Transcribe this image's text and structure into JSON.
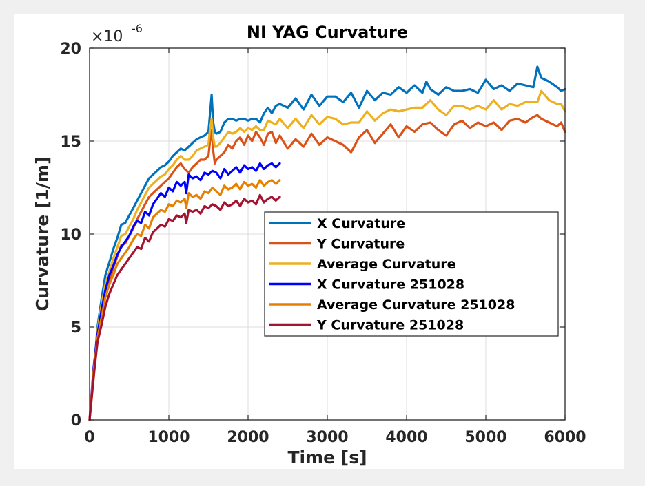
{
  "chart_data": {
    "type": "line",
    "title": "NI YAG Curvature",
    "xlabel": "Time [s]",
    "ylabel": "Curvature [1/m]",
    "y_exponent_base": "×10",
    "y_exponent_power": "-6",
    "xlim": [
      0,
      6000
    ],
    "ylim": [
      0,
      20
    ],
    "xticks": [
      0,
      1000,
      2000,
      3000,
      4000,
      5000,
      6000
    ],
    "yticks": [
      0,
      5,
      10,
      15,
      20
    ],
    "xtick_labels": [
      "0",
      "1000",
      "2000",
      "3000",
      "4000",
      "5000",
      "6000"
    ],
    "ytick_labels": [
      "0",
      "5",
      "10",
      "15",
      "20"
    ],
    "grid": true,
    "legend_position": "center-right",
    "series": [
      {
        "name": "X Curvature",
        "color": "#0072bd",
        "x": [
          0,
          50,
          100,
          150,
          200,
          250,
          300,
          350,
          400,
          450,
          500,
          550,
          600,
          650,
          700,
          750,
          800,
          850,
          900,
          950,
          1000,
          1050,
          1100,
          1150,
          1200,
          1250,
          1300,
          1350,
          1400,
          1450,
          1500,
          1520,
          1540,
          1560,
          1580,
          1600,
          1650,
          1700,
          1750,
          1800,
          1850,
          1900,
          1950,
          2000,
          2050,
          2100,
          2150,
          2200,
          2250,
          2300,
          2350,
          2400,
          2500,
          2600,
          2700,
          2800,
          2900,
          3000,
          3100,
          3200,
          3300,
          3400,
          3500,
          3600,
          3700,
          3800,
          3900,
          4000,
          4100,
          4200,
          4250,
          4300,
          4400,
          4500,
          4600,
          4700,
          4800,
          4900,
          5000,
          5100,
          5200,
          5300,
          5400,
          5500,
          5600,
          5650,
          5700,
          5800,
          5900,
          5950,
          6000
        ],
        "y": [
          0,
          2.5,
          5.0,
          6.5,
          7.8,
          8.5,
          9.2,
          9.8,
          10.5,
          10.6,
          11.0,
          11.4,
          11.8,
          12.2,
          12.6,
          13.0,
          13.2,
          13.4,
          13.6,
          13.7,
          13.9,
          14.2,
          14.4,
          14.6,
          14.5,
          14.7,
          14.9,
          15.1,
          15.2,
          15.3,
          15.5,
          16.5,
          17.5,
          16.0,
          15.5,
          15.4,
          15.5,
          16.0,
          16.2,
          16.2,
          16.1,
          16.2,
          16.2,
          16.1,
          16.2,
          16.2,
          16.0,
          16.5,
          16.8,
          16.5,
          16.9,
          17.0,
          16.8,
          17.3,
          16.7,
          17.5,
          16.9,
          17.4,
          17.4,
          17.1,
          17.6,
          16.8,
          17.7,
          17.2,
          17.6,
          17.5,
          17.9,
          17.6,
          18.0,
          17.6,
          18.2,
          17.8,
          17.5,
          17.9,
          17.7,
          17.7,
          17.8,
          17.6,
          18.3,
          17.8,
          18.0,
          17.7,
          18.1,
          18.0,
          17.9,
          19.0,
          18.4,
          18.2,
          17.9,
          17.7,
          17.8
        ]
      },
      {
        "name": "Y Curvature",
        "color": "#d95319",
        "x": [
          0,
          50,
          100,
          150,
          200,
          250,
          300,
          350,
          400,
          450,
          500,
          550,
          600,
          650,
          700,
          750,
          800,
          850,
          900,
          950,
          1000,
          1050,
          1100,
          1150,
          1200,
          1250,
          1300,
          1350,
          1400,
          1450,
          1500,
          1520,
          1540,
          1560,
          1580,
          1600,
          1650,
          1700,
          1750,
          1800,
          1850,
          1900,
          1950,
          2000,
          2050,
          2100,
          2150,
          2200,
          2250,
          2300,
          2350,
          2400,
          2500,
          2600,
          2700,
          2800,
          2900,
          3000,
          3100,
          3200,
          3300,
          3400,
          3500,
          3600,
          3700,
          3800,
          3900,
          4000,
          4100,
          4200,
          4300,
          4400,
          4500,
          4600,
          4700,
          4800,
          4900,
          5000,
          5100,
          5200,
          5300,
          5400,
          5500,
          5600,
          5650,
          5700,
          5800,
          5900,
          5950,
          6000
        ],
        "y": [
          0,
          2.2,
          4.5,
          5.8,
          6.8,
          7.5,
          8.2,
          8.8,
          9.4,
          9.5,
          9.9,
          10.3,
          10.8,
          11.2,
          11.6,
          12.0,
          12.2,
          12.4,
          12.6,
          12.8,
          13.0,
          13.3,
          13.6,
          13.8,
          13.5,
          13.3,
          13.6,
          13.8,
          14.0,
          14.0,
          14.2,
          15.0,
          15.6,
          14.5,
          13.8,
          14.0,
          14.2,
          14.4,
          14.8,
          14.6,
          15.0,
          15.2,
          14.8,
          15.3,
          15.0,
          15.5,
          15.2,
          14.8,
          15.4,
          15.5,
          14.9,
          15.3,
          14.6,
          15.1,
          14.7,
          15.4,
          14.8,
          15.2,
          15.0,
          14.8,
          14.4,
          15.2,
          15.6,
          14.9,
          15.4,
          15.9,
          15.2,
          15.8,
          15.5,
          15.9,
          16.0,
          15.6,
          15.3,
          15.9,
          16.1,
          15.7,
          16.0,
          15.8,
          16.0,
          15.6,
          16.1,
          16.2,
          16.0,
          16.3,
          16.4,
          16.2,
          16.0,
          15.8,
          16.0,
          15.5
        ]
      },
      {
        "name": "Average Curvature",
        "color": "#edb120",
        "x": [
          0,
          50,
          100,
          150,
          200,
          250,
          300,
          350,
          400,
          450,
          500,
          550,
          600,
          650,
          700,
          750,
          800,
          850,
          900,
          950,
          1000,
          1050,
          1100,
          1150,
          1200,
          1250,
          1300,
          1350,
          1400,
          1450,
          1500,
          1520,
          1540,
          1560,
          1580,
          1600,
          1650,
          1700,
          1750,
          1800,
          1850,
          1900,
          1950,
          2000,
          2050,
          2100,
          2150,
          2200,
          2250,
          2300,
          2350,
          2400,
          2500,
          2600,
          2700,
          2800,
          2900,
          3000,
          3100,
          3200,
          3300,
          3400,
          3500,
          3600,
          3700,
          3800,
          3900,
          4000,
          4100,
          4200,
          4300,
          4400,
          4500,
          4600,
          4700,
          4800,
          4900,
          5000,
          5100,
          5200,
          5300,
          5400,
          5500,
          5600,
          5650,
          5700,
          5800,
          5900,
          5950,
          6000
        ],
        "y": [
          0,
          2.4,
          4.8,
          6.2,
          7.3,
          8.0,
          8.7,
          9.3,
          9.9,
          10.0,
          10.4,
          10.8,
          11.3,
          11.7,
          12.1,
          12.5,
          12.7,
          12.9,
          13.1,
          13.2,
          13.5,
          13.7,
          14.0,
          14.2,
          14.0,
          14.0,
          14.2,
          14.5,
          14.6,
          14.7,
          14.8,
          15.7,
          16.2,
          15.2,
          14.7,
          14.7,
          14.9,
          15.2,
          15.5,
          15.4,
          15.5,
          15.7,
          15.5,
          15.7,
          15.6,
          15.8,
          15.6,
          15.6,
          16.1,
          16.0,
          15.9,
          16.2,
          15.7,
          16.2,
          15.7,
          16.4,
          15.9,
          16.3,
          16.2,
          15.9,
          16.0,
          16.0,
          16.6,
          16.1,
          16.5,
          16.7,
          16.6,
          16.7,
          16.8,
          16.8,
          17.2,
          16.7,
          16.4,
          16.9,
          16.9,
          16.7,
          16.9,
          16.7,
          17.2,
          16.7,
          17.0,
          16.9,
          17.1,
          17.1,
          17.1,
          17.7,
          17.2,
          17.0,
          17.0,
          16.6
        ]
      },
      {
        "name": "X Curvature 251028",
        "color": "#0000ff",
        "x": [
          0,
          50,
          100,
          150,
          200,
          250,
          300,
          350,
          400,
          450,
          500,
          550,
          600,
          650,
          700,
          750,
          800,
          850,
          900,
          950,
          1000,
          1050,
          1100,
          1150,
          1200,
          1220,
          1250,
          1300,
          1350,
          1400,
          1450,
          1500,
          1550,
          1600,
          1650,
          1700,
          1750,
          1800,
          1850,
          1900,
          1950,
          2000,
          2050,
          2100,
          2150,
          2200,
          2250,
          2300,
          2350,
          2400
        ],
        "y": [
          0,
          2.8,
          4.6,
          5.9,
          7.0,
          7.8,
          8.3,
          8.9,
          9.3,
          9.6,
          9.9,
          10.4,
          10.7,
          10.6,
          11.2,
          11.0,
          11.6,
          11.9,
          12.2,
          12.0,
          12.5,
          12.3,
          12.8,
          12.6,
          12.8,
          12.2,
          13.2,
          13.0,
          13.1,
          12.9,
          13.3,
          13.2,
          13.4,
          13.3,
          13.0,
          13.5,
          13.2,
          13.4,
          13.6,
          13.3,
          13.7,
          13.5,
          13.6,
          13.4,
          13.8,
          13.5,
          13.7,
          13.8,
          13.6,
          13.8
        ]
      },
      {
        "name": "Average Curvature 251028",
        "color": "#e68000",
        "x": [
          0,
          50,
          100,
          150,
          200,
          250,
          300,
          350,
          400,
          450,
          500,
          550,
          600,
          650,
          700,
          750,
          800,
          850,
          900,
          950,
          1000,
          1050,
          1100,
          1150,
          1200,
          1220,
          1250,
          1300,
          1350,
          1400,
          1450,
          1500,
          1550,
          1600,
          1650,
          1700,
          1750,
          1800,
          1850,
          1900,
          1950,
          2000,
          2050,
          2100,
          2150,
          2200,
          2250,
          2300,
          2350,
          2400
        ],
        "y": [
          0,
          2.6,
          4.4,
          5.5,
          6.6,
          7.3,
          7.8,
          8.4,
          8.7,
          9.0,
          9.3,
          9.7,
          10.0,
          9.9,
          10.5,
          10.3,
          10.9,
          11.1,
          11.3,
          11.2,
          11.6,
          11.5,
          11.8,
          11.7,
          11.9,
          11.4,
          12.2,
          12.0,
          12.1,
          11.9,
          12.3,
          12.2,
          12.5,
          12.3,
          12.1,
          12.6,
          12.4,
          12.5,
          12.7,
          12.4,
          12.8,
          12.6,
          12.7,
          12.5,
          12.9,
          12.6,
          12.8,
          12.9,
          12.7,
          12.9
        ]
      },
      {
        "name": "Y Curvature 251028",
        "color": "#a2142f",
        "x": [
          0,
          50,
          100,
          150,
          200,
          250,
          300,
          350,
          400,
          450,
          500,
          550,
          600,
          650,
          700,
          750,
          800,
          850,
          900,
          950,
          1000,
          1050,
          1100,
          1150,
          1200,
          1220,
          1250,
          1300,
          1350,
          1400,
          1450,
          1500,
          1550,
          1600,
          1650,
          1700,
          1750,
          1800,
          1850,
          1900,
          1950,
          2000,
          2050,
          2100,
          2150,
          2200,
          2250,
          2300,
          2350,
          2400
        ],
        "y": [
          0,
          2.3,
          4.2,
          5.1,
          6.1,
          6.8,
          7.3,
          7.8,
          8.1,
          8.4,
          8.7,
          9.0,
          9.3,
          9.2,
          9.8,
          9.6,
          10.1,
          10.3,
          10.5,
          10.4,
          10.8,
          10.7,
          11.0,
          10.9,
          11.1,
          10.6,
          11.3,
          11.2,
          11.3,
          11.1,
          11.5,
          11.4,
          11.6,
          11.5,
          11.3,
          11.7,
          11.5,
          11.6,
          11.8,
          11.5,
          11.9,
          11.7,
          11.8,
          11.6,
          12.1,
          11.7,
          11.9,
          12.0,
          11.8,
          12.0
        ]
      }
    ]
  }
}
